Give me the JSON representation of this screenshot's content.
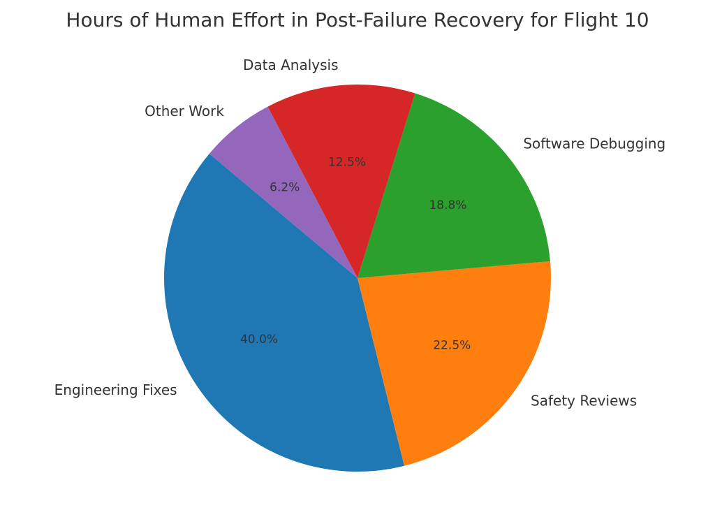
{
  "chart_data": {
    "type": "pie",
    "title": "Hours of Human Effort in Post-Failure Recovery for Flight 10",
    "categories": [
      "Engineering Fixes",
      "Safety Reviews",
      "Software Debugging",
      "Data Analysis",
      "Other Work"
    ],
    "values": [
      40.0,
      22.5,
      18.8,
      12.5,
      6.2
    ],
    "value_labels": [
      "40.0%",
      "22.5%",
      "18.8%",
      "12.5%",
      "6.2%"
    ],
    "colors": [
      "#1f77b4",
      "#ff7f0e",
      "#2ca02c",
      "#d62728",
      "#9467bd"
    ]
  }
}
